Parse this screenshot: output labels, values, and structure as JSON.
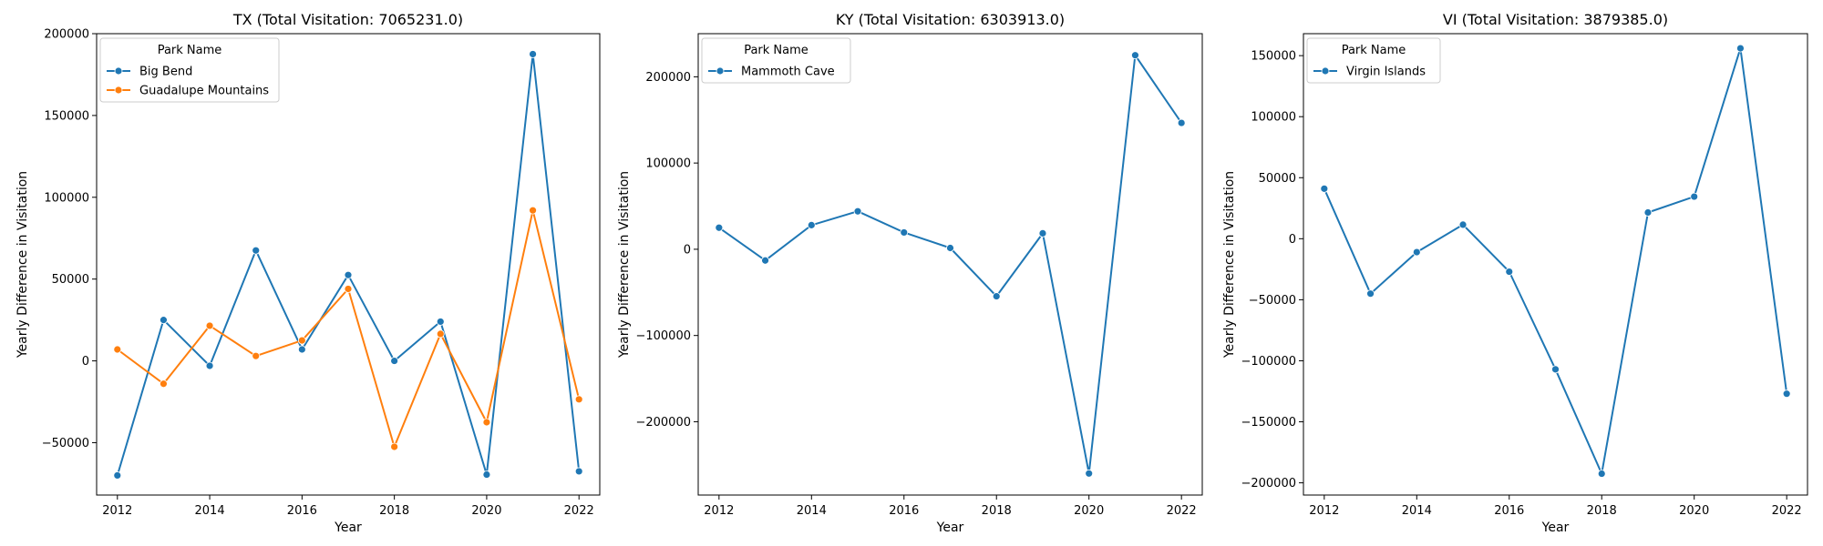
{
  "chart_data": [
    {
      "type": "line",
      "title": "TX (Total Visitation: 7065231.0)",
      "xlabel": "Year",
      "ylabel": "Yearly Difference in Visitation",
      "xlim": [
        2011.55,
        2022.45
      ],
      "ylim": [
        -82000,
        200000
      ],
      "xticks": [
        2012,
        2014,
        2016,
        2018,
        2020,
        2022
      ],
      "yticks": [
        -50000,
        0,
        50000,
        100000,
        150000,
        200000
      ],
      "ytick_labels": [
        "−50000",
        "0",
        "50000",
        "100000",
        "150000",
        "200000"
      ],
      "grid": false,
      "legend": {
        "title": "Park Name",
        "placement": "top-left"
      },
      "x": [
        2012,
        2013,
        2014,
        2015,
        2016,
        2017,
        2018,
        2019,
        2020,
        2021,
        2022
      ],
      "series": [
        {
          "name": "Big Bend",
          "color": "#1f77b4",
          "values": [
            -70000,
            25000,
            -3000,
            67500,
            7000,
            52500,
            0,
            24000,
            -69500,
            187500,
            -67500
          ]
        },
        {
          "name": "Guadalupe Mountains",
          "color": "#ff7f0e",
          "values": [
            7000,
            -14000,
            21500,
            3000,
            12500,
            44000,
            -52500,
            16500,
            -37500,
            92000,
            -23500
          ]
        }
      ]
    },
    {
      "type": "line",
      "title": "KY (Total Visitation: 6303913.0)",
      "xlabel": "Year",
      "ylabel": "Yearly Difference in Visitation",
      "xlim": [
        2011.55,
        2022.45
      ],
      "ylim": [
        -285000,
        250000
      ],
      "xticks": [
        2012,
        2014,
        2016,
        2018,
        2020,
        2022
      ],
      "yticks": [
        -200000,
        -100000,
        0,
        100000,
        200000
      ],
      "ytick_labels": [
        "−200000",
        "−100000",
        "0",
        "100000",
        "200000"
      ],
      "grid": false,
      "legend": {
        "title": "Park Name",
        "placement": "top-left"
      },
      "x": [
        2012,
        2013,
        2014,
        2015,
        2016,
        2017,
        2018,
        2019,
        2020,
        2021,
        2022
      ],
      "series": [
        {
          "name": "Mammoth Cave",
          "color": "#1f77b4",
          "values": [
            25000,
            -13000,
            28000,
            44000,
            19500,
            1500,
            -54500,
            18500,
            -260000,
            225000,
            146500
          ]
        }
      ]
    },
    {
      "type": "line",
      "title": "VI (Total Visitation: 3879385.0)",
      "xlabel": "Year",
      "ylabel": "Yearly Difference in Visitation",
      "xlim": [
        2011.55,
        2022.45
      ],
      "ylim": [
        -210000,
        168000
      ],
      "xticks": [
        2012,
        2014,
        2016,
        2018,
        2020,
        2022
      ],
      "yticks": [
        -200000,
        -150000,
        -100000,
        -50000,
        0,
        50000,
        100000,
        150000
      ],
      "ytick_labels": [
        "−200000",
        "−150000",
        "−100000",
        "−50000",
        "0",
        "50000",
        "100000",
        "150000"
      ],
      "grid": false,
      "legend": {
        "title": "Park Name",
        "placement": "top-left"
      },
      "x": [
        2012,
        2013,
        2014,
        2015,
        2016,
        2017,
        2018,
        2019,
        2020,
        2021,
        2022
      ],
      "series": [
        {
          "name": "Virgin Islands",
          "color": "#1f77b4",
          "values": [
            41000,
            -45000,
            -11000,
            11500,
            -27000,
            -107000,
            -192500,
            21500,
            34500,
            156000,
            -127000
          ]
        }
      ]
    }
  ]
}
